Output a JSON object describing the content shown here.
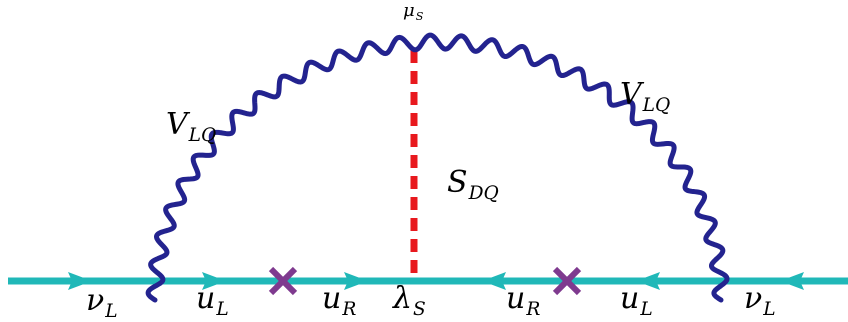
{
  "diagram": {
    "colors": {
      "fermion_line": "#20b8b8",
      "vector_boson": "#23238f",
      "scalar_line": "#e8191e",
      "mass_insertion": "#7f3a8f",
      "text": "#000000"
    },
    "labels": {
      "mu_s": {
        "main": "μ",
        "sub": "S"
      },
      "v_lq_left": {
        "main": "V",
        "sub": "LQ"
      },
      "v_lq_right": {
        "main": "V",
        "sub": "LQ"
      },
      "s_dq": {
        "main": "S",
        "sub": "DQ"
      },
      "nu_l_left": {
        "main": "ν",
        "sub": "L"
      },
      "u_l_left": {
        "main": "u",
        "sub": "L"
      },
      "u_r_left": {
        "main": "u",
        "sub": "R"
      },
      "lambda_s": {
        "main": "λ",
        "sub": "S"
      },
      "u_r_right": {
        "main": "u",
        "sub": "R"
      },
      "u_l_right": {
        "main": "u",
        "sub": "L"
      },
      "nu_l_right": {
        "main": "ν",
        "sub": "L"
      }
    },
    "icons": [
      "arrow-right-icon",
      "arrow-left-icon",
      "mass-insertion-cross-icon"
    ]
  }
}
